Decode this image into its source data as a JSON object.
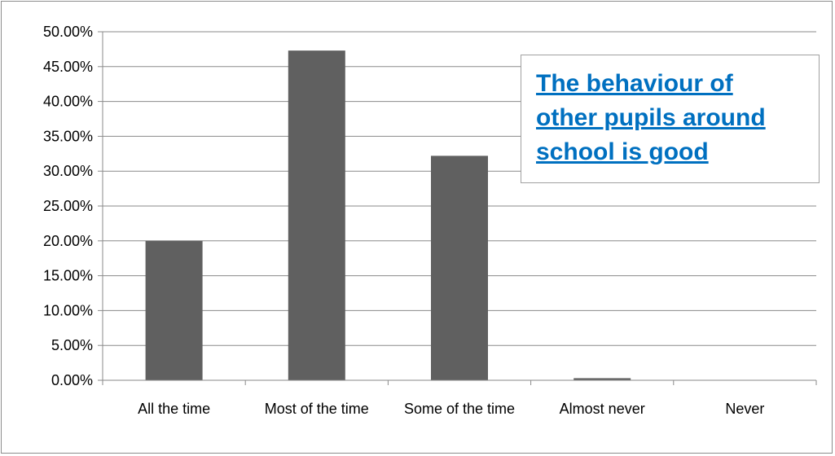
{
  "colors": {
    "bar": "#606060",
    "grid": "#8a8a8a",
    "title": "#0070c0"
  },
  "chart_data": {
    "type": "bar",
    "title": "The behaviour of other pupils around school is good",
    "categories": [
      "All the time",
      "Most of the time",
      "Some of the time",
      "Almost never",
      "Never"
    ],
    "values": [
      20.0,
      47.3,
      32.2,
      0.3,
      0.0
    ],
    "ylim": [
      0,
      50
    ],
    "y_ticks": [
      "0.00%",
      "5.00%",
      "10.00%",
      "15.00%",
      "20.00%",
      "25.00%",
      "30.00%",
      "35.00%",
      "40.00%",
      "45.00%",
      "50.00%"
    ],
    "xlabel": "",
    "ylabel": "",
    "grid": true,
    "legend": "none"
  }
}
